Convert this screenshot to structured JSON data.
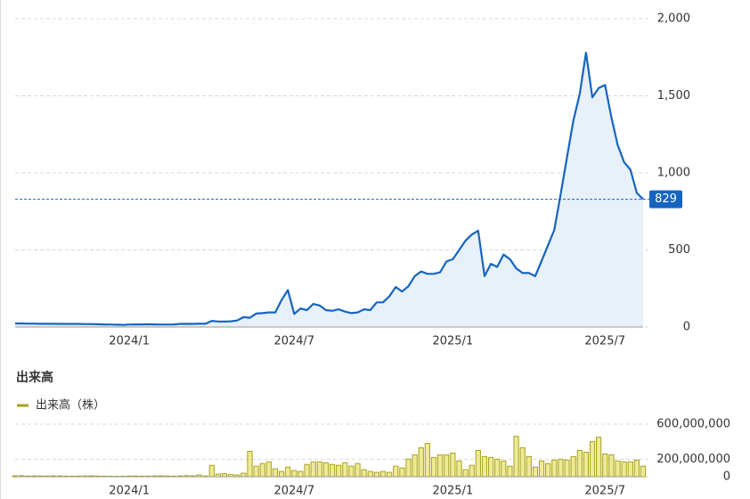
{
  "chart_data": [
    {
      "type": "line",
      "categories": [
        null,
        null,
        null,
        null,
        null,
        null,
        null,
        null,
        null,
        null,
        null,
        null,
        null,
        null,
        null,
        null,
        null,
        null,
        "2024/1",
        null,
        null,
        null,
        null,
        null,
        null,
        null,
        null,
        null,
        null,
        null,
        null,
        null,
        null,
        null,
        null,
        null,
        null,
        null,
        null,
        null,
        null,
        null,
        null,
        null,
        "2024/7",
        null,
        null,
        null,
        null,
        null,
        null,
        null,
        null,
        null,
        null,
        null,
        null,
        null,
        null,
        null,
        null,
        null,
        null,
        null,
        null,
        null,
        null,
        null,
        null,
        "2025/1",
        null,
        null,
        null,
        null,
        null,
        null,
        null,
        null,
        null,
        null,
        null,
        null,
        null,
        null,
        null,
        null,
        null,
        null,
        null,
        null,
        null,
        null,
        null,
        "2025/7",
        null,
        null,
        null,
        null,
        null,
        null
      ],
      "values": [
        23,
        23,
        22,
        22,
        21,
        21,
        21,
        20,
        20,
        20,
        20,
        19,
        19,
        18,
        17,
        16,
        15,
        14,
        16,
        17,
        17,
        18,
        17,
        16,
        16,
        17,
        20,
        21,
        20,
        22,
        21,
        40,
        36,
        35,
        37,
        42,
        64,
        60,
        87,
        90,
        95,
        95,
        175,
        240,
        85,
        120,
        110,
        150,
        140,
        110,
        105,
        115,
        100,
        90,
        95,
        115,
        110,
        160,
        160,
        200,
        260,
        230,
        265,
        330,
        360,
        345,
        345,
        355,
        425,
        440,
        500,
        560,
        600,
        625,
        330,
        410,
        390,
        470,
        440,
        380,
        350,
        350,
        330,
        430,
        530,
        630,
        860,
        1100,
        1340,
        1510,
        1780,
        1490,
        1550,
        1570,
        1360,
        1180,
        1070,
        1020,
        870,
        829
      ],
      "color": "#1565c0",
      "last_value": 829,
      "ylim": [
        0,
        2000
      ],
      "yticks": [
        0,
        500,
        {
          "value": 1000,
          "label": "1,000"
        },
        {
          "value": 1500,
          "label": "1,500"
        },
        {
          "value": 2000,
          "label": "2,000"
        }
      ],
      "grid": true
    },
    {
      "type": "bar",
      "title": "出来高",
      "categories": [
        null,
        null,
        null,
        null,
        null,
        null,
        null,
        null,
        null,
        null,
        null,
        null,
        null,
        null,
        null,
        null,
        null,
        null,
        "2024/1",
        null,
        null,
        null,
        null,
        null,
        null,
        null,
        null,
        null,
        null,
        null,
        null,
        null,
        null,
        null,
        null,
        null,
        null,
        null,
        null,
        null,
        null,
        null,
        null,
        null,
        "2024/7",
        null,
        null,
        null,
        null,
        null,
        null,
        null,
        null,
        null,
        null,
        null,
        null,
        null,
        null,
        null,
        null,
        null,
        null,
        null,
        null,
        null,
        null,
        null,
        null,
        "2025/1",
        null,
        null,
        null,
        null,
        null,
        null,
        null,
        null,
        null,
        null,
        null,
        null,
        null,
        null,
        null,
        null,
        null,
        null,
        null,
        null,
        null,
        null,
        null,
        "2025/7",
        null,
        null,
        null,
        null,
        null,
        null
      ],
      "series": [
        {
          "name": "出来高（株）",
          "color": "#a8a21b",
          "values": [
            10000000,
            12000000,
            8000000,
            10000000,
            9000000,
            8000000,
            10000000,
            9000000,
            8000000,
            7000000,
            8000000,
            9000000,
            10000000,
            8000000,
            7000000,
            6000000,
            5000000,
            6000000,
            8000000,
            9000000,
            7000000,
            8000000,
            9000000,
            10000000,
            8000000,
            7000000,
            9000000,
            12000000,
            10000000,
            20000000,
            8000000,
            130000000,
            30000000,
            35000000,
            25000000,
            20000000,
            40000000,
            290000000,
            120000000,
            150000000,
            170000000,
            90000000,
            60000000,
            110000000,
            70000000,
            60000000,
            140000000,
            170000000,
            170000000,
            160000000,
            140000000,
            130000000,
            160000000,
            120000000,
            150000000,
            80000000,
            60000000,
            50000000,
            60000000,
            50000000,
            120000000,
            100000000,
            200000000,
            250000000,
            330000000,
            380000000,
            220000000,
            250000000,
            250000000,
            270000000,
            180000000,
            80000000,
            130000000,
            300000000,
            230000000,
            220000000,
            200000000,
            180000000,
            120000000,
            460000000,
            330000000,
            230000000,
            110000000,
            180000000,
            150000000,
            190000000,
            200000000,
            190000000,
            230000000,
            300000000,
            280000000,
            400000000,
            450000000,
            260000000,
            250000000,
            180000000,
            170000000,
            170000000,
            190000000,
            120000000
          ]
        }
      ],
      "ylim": [
        0,
        600000000
      ],
      "yticks": [
        0,
        {
          "value": 200000000,
          "label": "200,000,000"
        },
        {
          "value": 600000000,
          "label": "600,000,000"
        }
      ],
      "grid": true
    }
  ]
}
